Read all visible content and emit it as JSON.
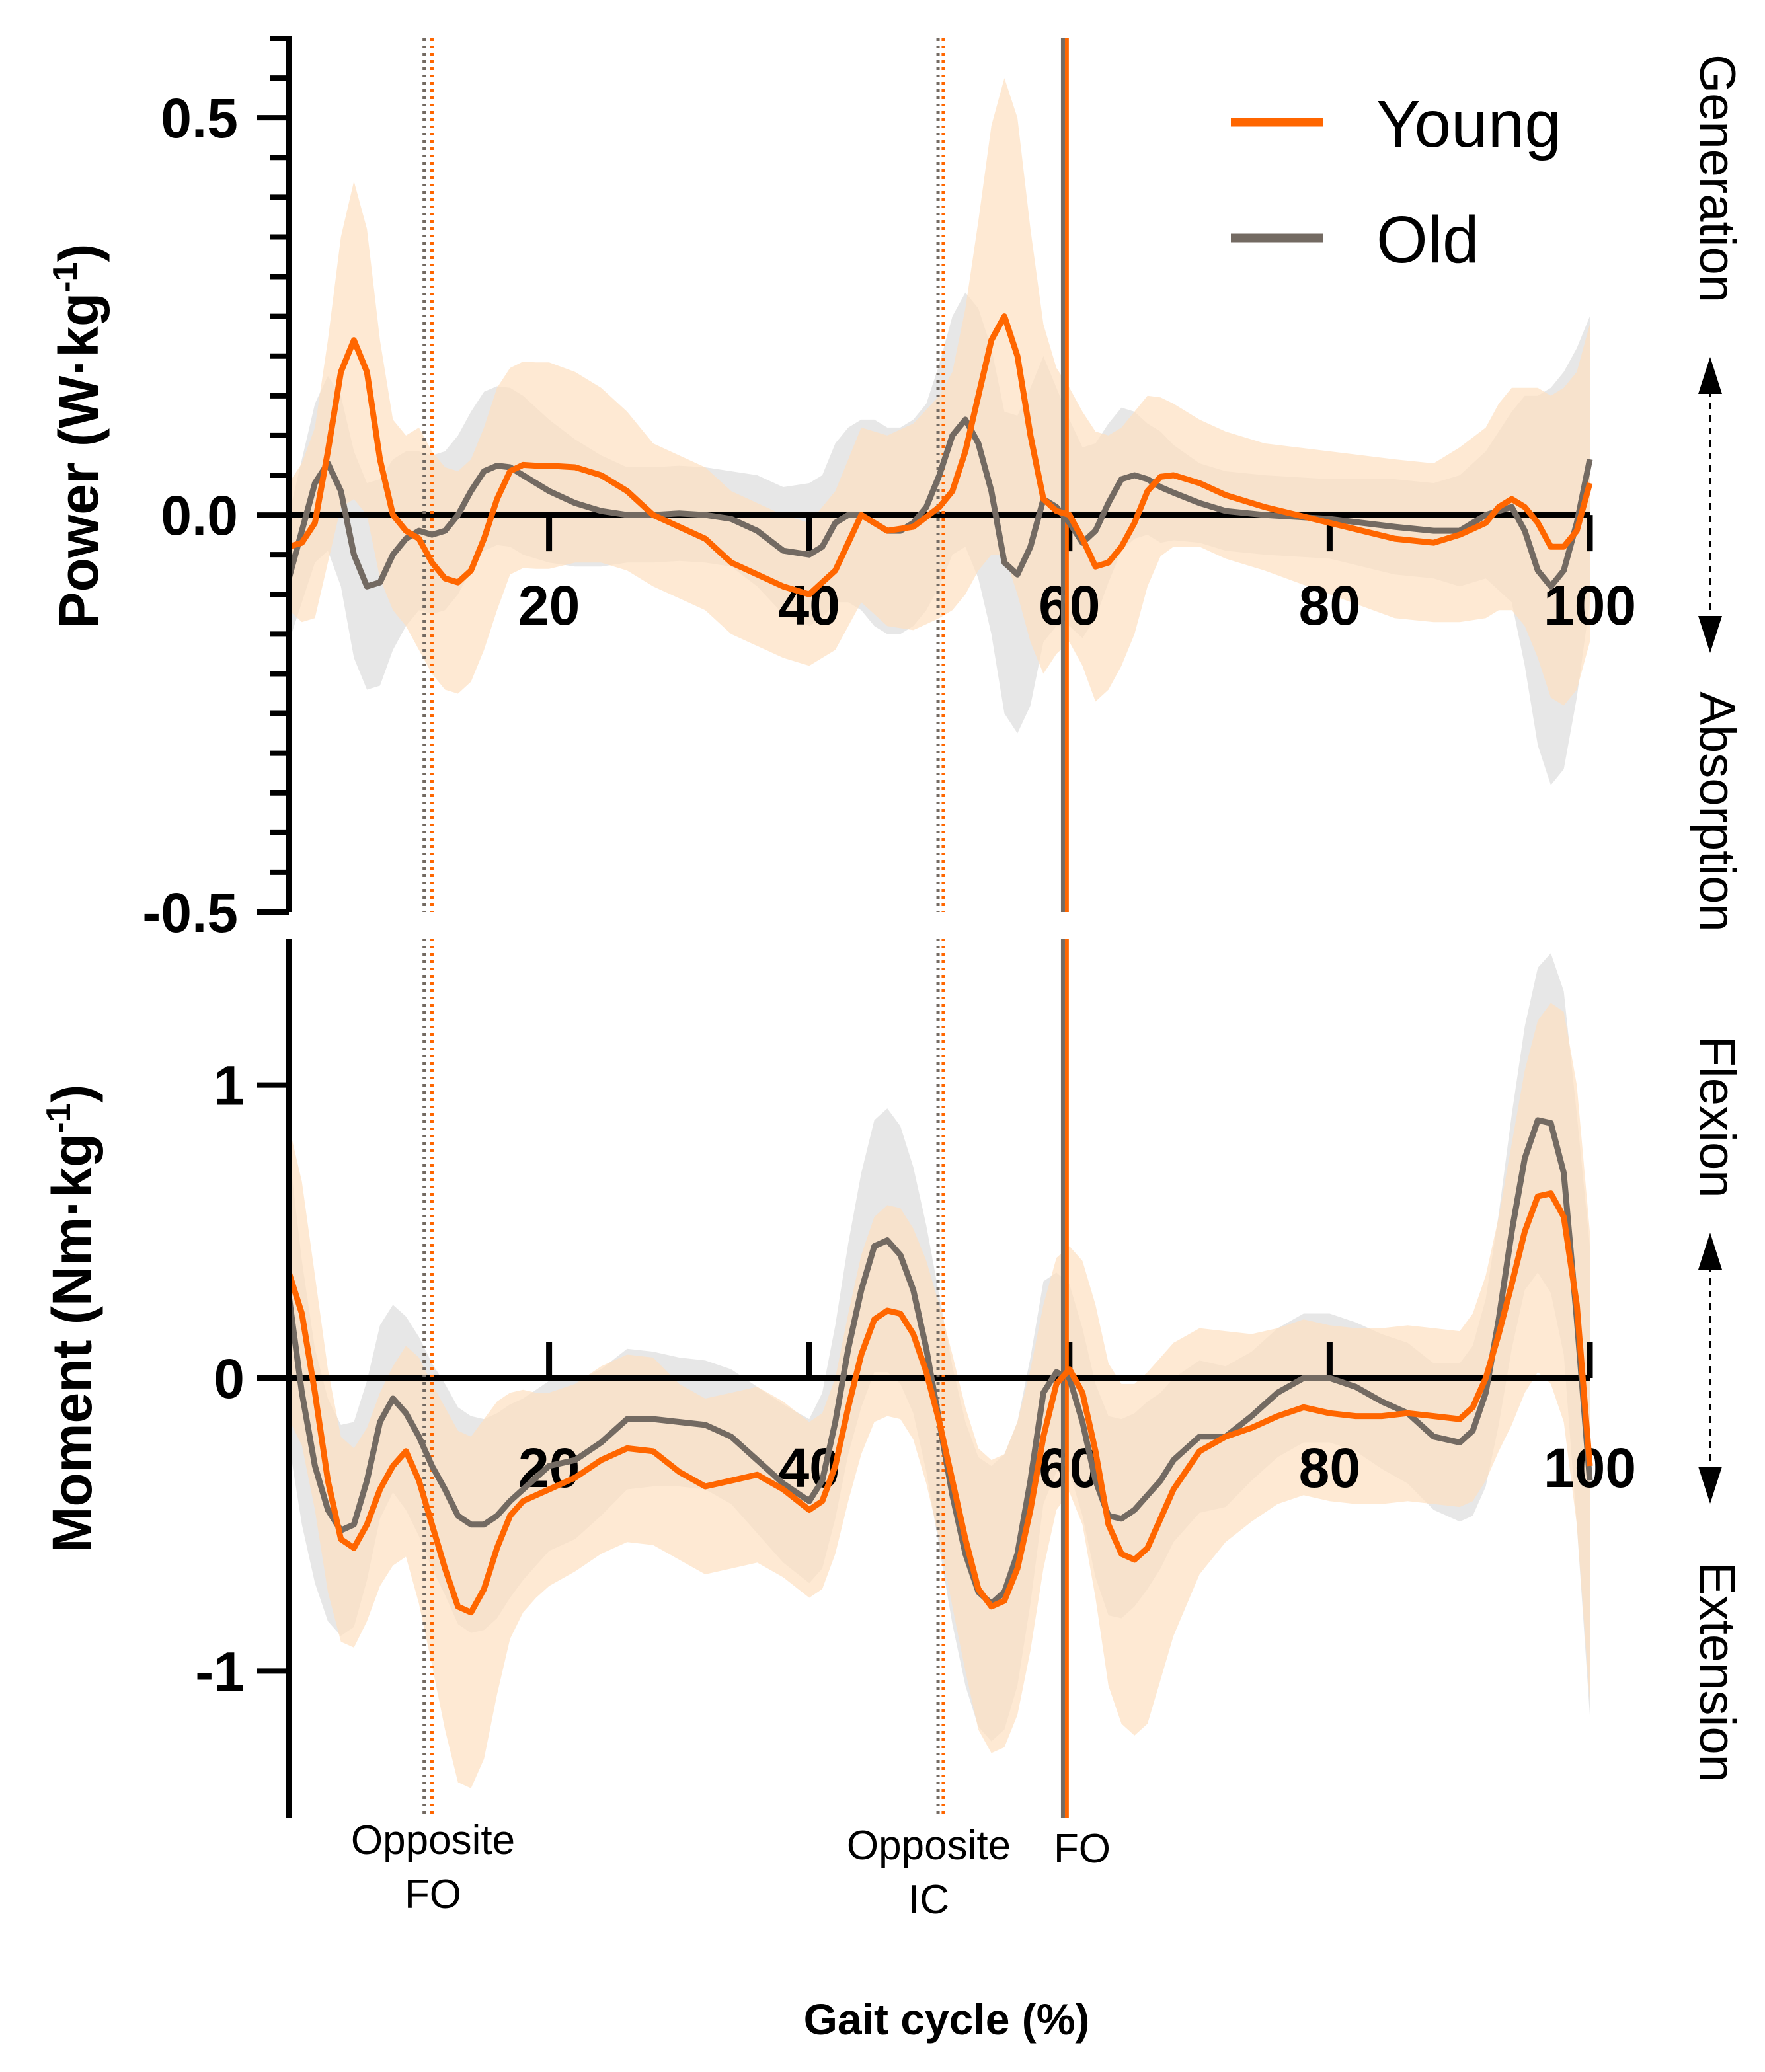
{
  "chart_data": [
    {
      "type": "line",
      "panel": "power",
      "ylabel": "Power (W·kg⁻¹)",
      "ylabel_parts": [
        "Power (W·kg",
        "-1",
        ")"
      ],
      "xlim": [
        0,
        100
      ],
      "ylim": [
        -0.5,
        0.6
      ],
      "xticks": [
        0,
        20,
        40,
        60,
        80,
        100
      ],
      "x_tick_labels": [
        "20",
        "40",
        "60",
        "80",
        "100"
      ],
      "y_tick_labels": [
        {
          "value": 0.5,
          "label": "0.5"
        },
        {
          "value": 0.0,
          "label": "0.0"
        },
        {
          "value": -0.5,
          "label": "-0.5"
        }
      ],
      "y_minor_step": 0.05,
      "side_labels": {
        "top": "Generation",
        "bottom": "Absorption"
      },
      "series": [
        {
          "name": "Young",
          "color": "#ff6600",
          "band_color": "#fde0c0",
          "x": [
            0,
            1,
            2,
            3,
            4,
            5,
            6,
            7,
            8,
            9,
            10,
            11,
            12,
            13,
            14,
            15,
            16,
            17,
            18,
            19,
            20,
            22,
            24,
            26,
            28,
            30,
            32,
            34,
            36,
            38,
            40,
            42,
            44,
            46,
            48,
            50,
            51,
            52,
            53,
            54,
            55,
            56,
            57,
            58,
            59,
            60,
            61,
            62,
            63,
            64,
            65,
            66,
            67,
            68,
            70,
            72,
            75,
            80,
            85,
            88,
            90,
            92,
            93,
            94,
            95,
            96,
            97,
            98,
            99,
            100
          ],
          "values": [
            -0.04,
            -0.035,
            -0.01,
            0.08,
            0.18,
            0.22,
            0.18,
            0.07,
            0.0,
            -0.02,
            -0.03,
            -0.06,
            -0.08,
            -0.085,
            -0.07,
            -0.03,
            0.02,
            0.055,
            0.063,
            0.062,
            0.062,
            0.06,
            0.05,
            0.03,
            0.0,
            -0.015,
            -0.03,
            -0.06,
            -0.075,
            -0.09,
            -0.1,
            -0.07,
            0.0,
            -0.02,
            -0.015,
            0.01,
            0.03,
            0.08,
            0.15,
            0.22,
            0.25,
            0.2,
            0.1,
            0.02,
            0.005,
            0.0,
            -0.03,
            -0.065,
            -0.06,
            -0.04,
            -0.01,
            0.03,
            0.048,
            0.05,
            0.04,
            0.025,
            0.01,
            -0.01,
            -0.03,
            -0.035,
            -0.025,
            -0.01,
            0.01,
            0.02,
            0.01,
            -0.01,
            -0.04,
            -0.04,
            -0.02,
            0.04
          ],
          "sd": [
            0.08,
            0.1,
            0.12,
            0.14,
            0.17,
            0.2,
            0.18,
            0.15,
            0.12,
            0.12,
            0.14,
            0.14,
            0.14,
            0.14,
            0.14,
            0.14,
            0.14,
            0.13,
            0.13,
            0.13,
            0.13,
            0.12,
            0.11,
            0.1,
            0.09,
            0.09,
            0.09,
            0.09,
            0.09,
            0.09,
            0.09,
            0.1,
            0.11,
            0.12,
            0.13,
            0.14,
            0.15,
            0.18,
            0.22,
            0.27,
            0.3,
            0.3,
            0.26,
            0.22,
            0.18,
            0.16,
            0.16,
            0.17,
            0.16,
            0.15,
            0.14,
            0.12,
            0.1,
            0.09,
            0.08,
            0.08,
            0.08,
            0.09,
            0.1,
            0.1,
            0.11,
            0.12,
            0.13,
            0.14,
            0.15,
            0.17,
            0.19,
            0.2,
            0.2,
            0.2
          ]
        },
        {
          "name": "Old",
          "color": "#736a62",
          "band_color": "#e3e3e3",
          "x": [
            0,
            1,
            2,
            3,
            4,
            5,
            6,
            7,
            8,
            9,
            10,
            11,
            12,
            13,
            14,
            15,
            16,
            17,
            18,
            20,
            22,
            24,
            26,
            28,
            30,
            32,
            34,
            36,
            38,
            40,
            41,
            42,
            43,
            44,
            45,
            46,
            47,
            48,
            49,
            50,
            51,
            52,
            53,
            54,
            55,
            56,
            57,
            58,
            59,
            60,
            61,
            62,
            63,
            64,
            65,
            66,
            67,
            68,
            70,
            72,
            75,
            80,
            85,
            88,
            90,
            92,
            94,
            95,
            96,
            97,
            98,
            99,
            100
          ],
          "values": [
            -0.08,
            -0.02,
            0.04,
            0.065,
            0.03,
            -0.05,
            -0.09,
            -0.085,
            -0.05,
            -0.03,
            -0.02,
            -0.025,
            -0.02,
            0.0,
            0.03,
            0.055,
            0.062,
            0.06,
            0.05,
            0.03,
            0.015,
            0.005,
            0.0,
            0.0,
            0.002,
            0.0,
            -0.005,
            -0.02,
            -0.045,
            -0.05,
            -0.04,
            -0.01,
            0.0,
            0.0,
            -0.01,
            -0.02,
            -0.02,
            -0.01,
            0.01,
            0.05,
            0.1,
            0.12,
            0.09,
            0.03,
            -0.06,
            -0.075,
            -0.04,
            0.02,
            0.01,
            -0.01,
            -0.035,
            -0.02,
            0.015,
            0.045,
            0.05,
            0.045,
            0.035,
            0.028,
            0.015,
            0.005,
            0.0,
            -0.005,
            -0.015,
            -0.02,
            -0.02,
            0.0,
            0.01,
            -0.02,
            -0.07,
            -0.09,
            -0.07,
            -0.01,
            0.07
          ],
          "sd": [
            0.08,
            0.09,
            0.1,
            0.11,
            0.12,
            0.13,
            0.13,
            0.13,
            0.12,
            0.11,
            0.1,
            0.1,
            0.1,
            0.1,
            0.1,
            0.1,
            0.1,
            0.1,
            0.1,
            0.09,
            0.08,
            0.07,
            0.06,
            0.06,
            0.06,
            0.06,
            0.06,
            0.07,
            0.08,
            0.09,
            0.09,
            0.1,
            0.11,
            0.12,
            0.13,
            0.13,
            0.13,
            0.13,
            0.13,
            0.14,
            0.15,
            0.16,
            0.17,
            0.18,
            0.19,
            0.2,
            0.2,
            0.18,
            0.15,
            0.13,
            0.12,
            0.11,
            0.1,
            0.09,
            0.08,
            0.07,
            0.07,
            0.06,
            0.05,
            0.05,
            0.05,
            0.05,
            0.06,
            0.06,
            0.07,
            0.08,
            0.12,
            0.17,
            0.22,
            0.25,
            0.25,
            0.22,
            0.18
          ]
        }
      ]
    },
    {
      "type": "line",
      "panel": "moment",
      "ylabel": "Moment (Nm·kg⁻¹)",
      "ylabel_parts": [
        "Moment (Nm·kg",
        "-1",
        ")"
      ],
      "xlim": [
        0,
        100
      ],
      "ylim": [
        -1.5,
        1.5
      ],
      "xticks": [
        0,
        20,
        40,
        60,
        80,
        100
      ],
      "x_tick_labels": [
        "20",
        "40",
        "60",
        "80",
        "100"
      ],
      "y_tick_labels": [
        {
          "value": 1,
          "label": "1"
        },
        {
          "value": 0,
          "label": "0"
        },
        {
          "value": -1,
          "label": "-1"
        }
      ],
      "side_labels": {
        "top": "Flexion",
        "bottom": "Extension"
      },
      "series": [
        {
          "name": "Young",
          "color": "#ff6600",
          "band_color": "#fde0c0",
          "x": [
            0,
            1,
            2,
            3,
            4,
            5,
            6,
            7,
            8,
            9,
            10,
            11,
            12,
            13,
            14,
            15,
            16,
            17,
            18,
            19,
            20,
            22,
            24,
            26,
            28,
            30,
            32,
            34,
            36,
            38,
            40,
            41,
            42,
            43,
            44,
            45,
            46,
            47,
            48,
            49,
            50,
            51,
            52,
            53,
            54,
            55,
            56,
            57,
            58,
            59,
            60,
            61,
            62,
            63,
            64,
            65,
            66,
            67,
            68,
            70,
            72,
            74,
            76,
            78,
            80,
            82,
            84,
            86,
            88,
            90,
            91,
            92,
            93,
            94,
            95,
            96,
            97,
            98,
            99,
            100
          ],
          "values": [
            0.36,
            0.22,
            -0.05,
            -0.35,
            -0.55,
            -0.58,
            -0.5,
            -0.38,
            -0.3,
            -0.25,
            -0.35,
            -0.5,
            -0.65,
            -0.78,
            -0.8,
            -0.72,
            -0.58,
            -0.47,
            -0.42,
            -0.4,
            -0.38,
            -0.34,
            -0.28,
            -0.24,
            -0.25,
            -0.32,
            -0.37,
            -0.35,
            -0.33,
            -0.38,
            -0.45,
            -0.42,
            -0.3,
            -0.1,
            0.08,
            0.2,
            0.23,
            0.22,
            0.15,
            0.02,
            -0.15,
            -0.35,
            -0.55,
            -0.72,
            -0.78,
            -0.76,
            -0.65,
            -0.45,
            -0.2,
            -0.02,
            0.03,
            -0.05,
            -0.25,
            -0.5,
            -0.6,
            -0.62,
            -0.58,
            -0.48,
            -0.38,
            -0.25,
            -0.2,
            -0.17,
            -0.13,
            -0.1,
            -0.12,
            -0.13,
            -0.13,
            -0.12,
            -0.13,
            -0.14,
            -0.1,
            0.0,
            0.15,
            0.32,
            0.5,
            0.62,
            0.63,
            0.55,
            0.25,
            -0.3
          ],
          "sd": [
            0.5,
            0.45,
            0.4,
            0.38,
            0.35,
            0.34,
            0.33,
            0.33,
            0.34,
            0.36,
            0.42,
            0.48,
            0.55,
            0.6,
            0.6,
            0.58,
            0.5,
            0.42,
            0.38,
            0.35,
            0.33,
            0.32,
            0.32,
            0.32,
            0.32,
            0.3,
            0.3,
            0.3,
            0.3,
            0.3,
            0.3,
            0.3,
            0.3,
            0.32,
            0.34,
            0.35,
            0.36,
            0.36,
            0.36,
            0.38,
            0.4,
            0.43,
            0.45,
            0.48,
            0.5,
            0.5,
            0.5,
            0.48,
            0.45,
            0.43,
            0.42,
            0.45,
            0.5,
            0.55,
            0.58,
            0.6,
            0.6,
            0.55,
            0.5,
            0.42,
            0.36,
            0.32,
            0.3,
            0.3,
            0.3,
            0.3,
            0.3,
            0.3,
            0.3,
            0.3,
            0.32,
            0.35,
            0.4,
            0.48,
            0.55,
            0.6,
            0.65,
            0.7,
            0.75,
            0.8
          ]
        },
        {
          "name": "Old",
          "color": "#736a62",
          "band_color": "#e3e3e3",
          "x": [
            0,
            1,
            2,
            3,
            4,
            5,
            6,
            7,
            8,
            9,
            10,
            11,
            12,
            13,
            14,
            15,
            16,
            17,
            18,
            19,
            20,
            22,
            24,
            26,
            28,
            30,
            32,
            34,
            36,
            38,
            40,
            41,
            42,
            43,
            44,
            45,
            46,
            47,
            48,
            49,
            50,
            51,
            52,
            53,
            54,
            55,
            56,
            57,
            58,
            59,
            60,
            61,
            62,
            63,
            64,
            65,
            66,
            67,
            68,
            70,
            72,
            74,
            76,
            78,
            80,
            82,
            84,
            86,
            88,
            90,
            91,
            92,
            93,
            94,
            95,
            96,
            97,
            98,
            99,
            100
          ],
          "values": [
            0.28,
            -0.05,
            -0.3,
            -0.45,
            -0.52,
            -0.5,
            -0.35,
            -0.15,
            -0.07,
            -0.12,
            -0.2,
            -0.3,
            -0.38,
            -0.47,
            -0.5,
            -0.5,
            -0.47,
            -0.42,
            -0.38,
            -0.34,
            -0.3,
            -0.28,
            -0.22,
            -0.14,
            -0.14,
            -0.15,
            -0.16,
            -0.2,
            -0.28,
            -0.36,
            -0.42,
            -0.35,
            -0.15,
            0.1,
            0.3,
            0.45,
            0.47,
            0.42,
            0.3,
            0.1,
            -0.15,
            -0.4,
            -0.6,
            -0.73,
            -0.77,
            -0.73,
            -0.6,
            -0.35,
            -0.05,
            0.02,
            0.0,
            -0.15,
            -0.35,
            -0.47,
            -0.48,
            -0.45,
            -0.4,
            -0.35,
            -0.28,
            -0.2,
            -0.2,
            -0.13,
            -0.05,
            0.0,
            0.0,
            -0.03,
            -0.08,
            -0.12,
            -0.2,
            -0.22,
            -0.18,
            -0.05,
            0.2,
            0.5,
            0.75,
            0.88,
            0.87,
            0.7,
            0.2,
            -0.35
          ],
          "sd": [
            0.5,
            0.45,
            0.4,
            0.38,
            0.36,
            0.35,
            0.34,
            0.33,
            0.32,
            0.33,
            0.34,
            0.35,
            0.36,
            0.37,
            0.37,
            0.36,
            0.35,
            0.33,
            0.31,
            0.3,
            0.29,
            0.27,
            0.25,
            0.24,
            0.23,
            0.22,
            0.22,
            0.23,
            0.25,
            0.27,
            0.28,
            0.3,
            0.33,
            0.36,
            0.4,
            0.43,
            0.45,
            0.44,
            0.42,
            0.42,
            0.43,
            0.44,
            0.45,
            0.46,
            0.47,
            0.47,
            0.45,
            0.42,
            0.38,
            0.34,
            0.32,
            0.32,
            0.33,
            0.34,
            0.34,
            0.33,
            0.32,
            0.3,
            0.28,
            0.26,
            0.24,
            0.22,
            0.22,
            0.22,
            0.22,
            0.22,
            0.23,
            0.24,
            0.25,
            0.27,
            0.29,
            0.32,
            0.36,
            0.4,
            0.45,
            0.52,
            0.58,
            0.62,
            0.7,
            0.8
          ]
        }
      ]
    }
  ],
  "events": [
    {
      "name": "opposite-fo-young",
      "x": 11.0,
      "color": "#ff6600",
      "style": "dotted"
    },
    {
      "name": "opposite-fo-old",
      "x": 10.4,
      "color": "#736a62",
      "style": "dotted"
    },
    {
      "name": "opposite-ic-young",
      "x": 50.3,
      "color": "#ff6600",
      "style": "dotted"
    },
    {
      "name": "opposite-ic-old",
      "x": 49.9,
      "color": "#736a62",
      "style": "dotted"
    },
    {
      "name": "fo-young",
      "x": 59.8,
      "color": "#ff6600",
      "style": "solid"
    },
    {
      "name": "fo-old",
      "x": 59.5,
      "color": "#736a62",
      "style": "solid"
    }
  ],
  "event_labels": {
    "opposite_fo": [
      "Opposite",
      "FO"
    ],
    "opposite_ic": [
      "Opposite",
      "IC"
    ],
    "fo": "FO"
  },
  "legend": {
    "position": "top-right",
    "items": [
      {
        "label": "Young",
        "color": "#ff6600"
      },
      {
        "label": "Old",
        "color": "#736a62"
      }
    ]
  },
  "xlabel": "Gait cycle (%)"
}
